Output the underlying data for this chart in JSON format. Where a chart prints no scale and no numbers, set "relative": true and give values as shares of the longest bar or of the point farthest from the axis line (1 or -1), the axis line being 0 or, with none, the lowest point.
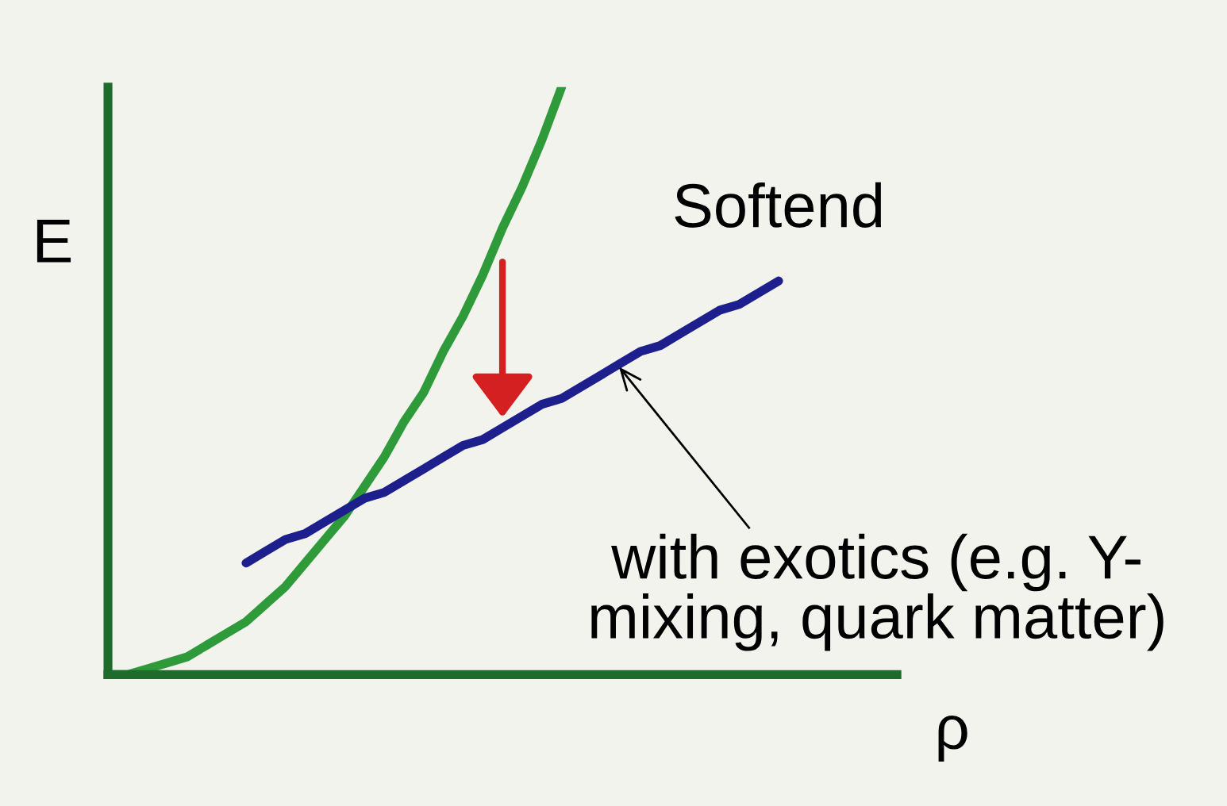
{
  "chart_data": {
    "type": "line",
    "relative": true,
    "xlabel": "ρ",
    "ylabel": "E",
    "categories": [
      null,
      null,
      null,
      null,
      null,
      null,
      null,
      null,
      null,
      null,
      null,
      null,
      null,
      null,
      null,
      null,
      null,
      null,
      null,
      null,
      null,
      null,
      null,
      null,
      null,
      null,
      null,
      null,
      null,
      null,
      null,
      null,
      null,
      null,
      null,
      null,
      null,
      null,
      null,
      null,
      null
    ],
    "series": [
      {
        "color": "#2e9a3a",
        "values": [
          0,
          0.0,
          0.01,
          0.02,
          0.03,
          0.05,
          0.07,
          0.09,
          0.12,
          0.15,
          0.19,
          0.23,
          0.27,
          0.32,
          0.37,
          0.43,
          0.48,
          0.55,
          0.61,
          0.68,
          0.76,
          0.83,
          0.91,
          1.0,
          null,
          null,
          null,
          null,
          null,
          null,
          null,
          null,
          null,
          null,
          null,
          null,
          null,
          null,
          null,
          null,
          null
        ]
      },
      {
        "color": "#1c1f8c",
        "values": [
          null,
          null,
          null,
          null,
          null,
          null,
          null,
          0.19,
          0.21,
          0.23,
          0.24,
          0.26,
          0.28,
          0.3,
          0.31,
          0.33,
          0.35,
          0.37,
          0.39,
          0.4,
          0.42,
          0.44,
          0.46,
          0.47,
          0.49,
          0.51,
          0.53,
          0.55,
          0.56,
          0.58,
          0.6,
          0.62,
          0.63,
          0.65,
          0.67,
          null,
          null,
          null,
          null,
          null,
          null
        ]
      }
    ],
    "annotations": [
      "Softend",
      "with exotics (e.g. Y-\nmixing, quark matter)"
    ],
    "legend": false
  }
}
